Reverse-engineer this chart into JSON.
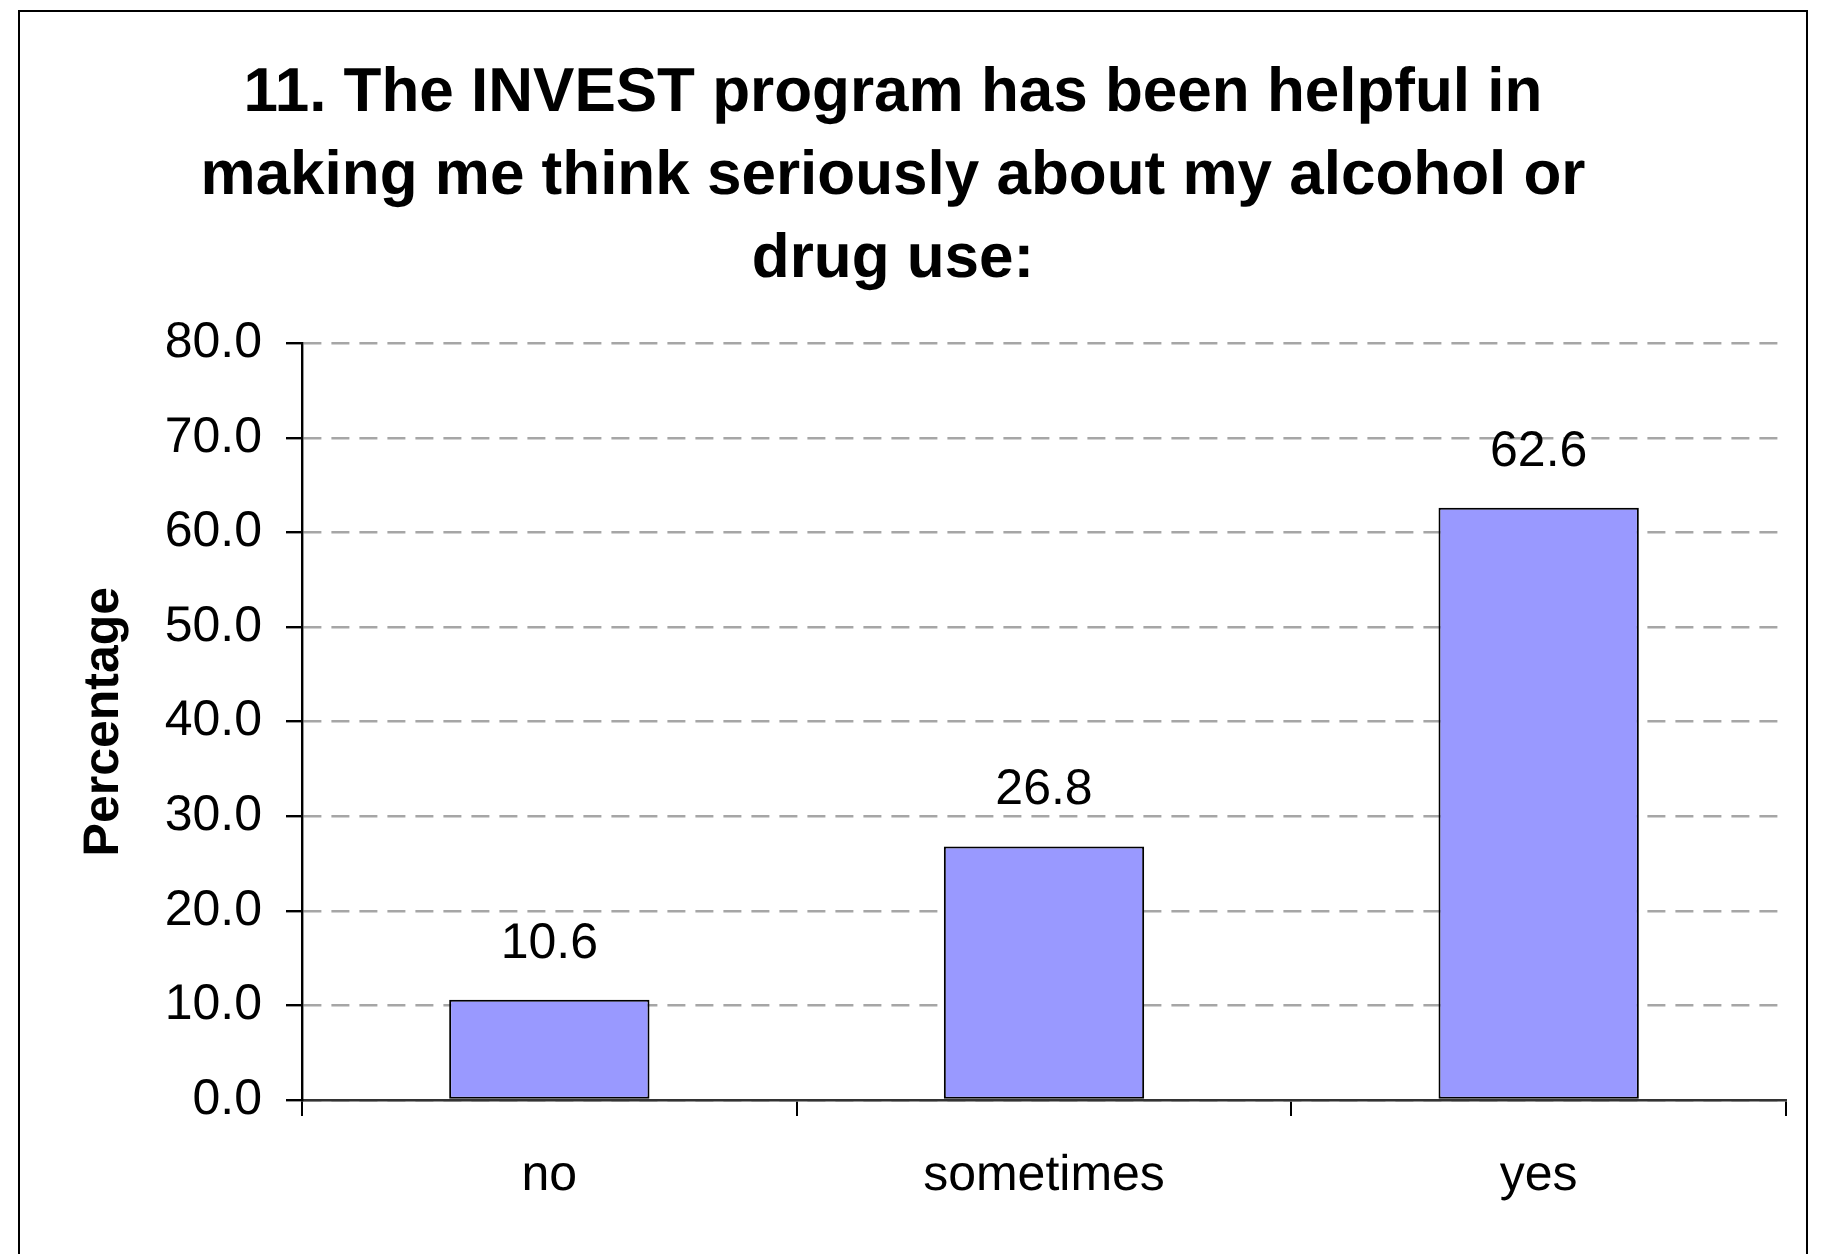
{
  "chart_data": {
    "type": "bar",
    "title": "11. The INVEST program has been helpful in making me think seriously about my alcohol or drug use:",
    "ylabel": "Percentage",
    "categories": [
      "no",
      "sometimes",
      "yes"
    ],
    "values": [
      10.6,
      26.8,
      62.6
    ],
    "color": "#9999ff",
    "ylim": [
      0,
      80
    ],
    "yticks": [
      {
        "value": 0,
        "label": "0.0"
      },
      {
        "value": 10,
        "label": "10.0"
      },
      {
        "value": 20,
        "label": "20.0"
      },
      {
        "value": 30,
        "label": "30.0"
      },
      {
        "value": 40,
        "label": "40.0"
      },
      {
        "value": 50,
        "label": "50.0"
      },
      {
        "value": 60,
        "label": "60.0"
      },
      {
        "value": 70,
        "label": "70.0"
      },
      {
        "value": 80,
        "label": "80.0"
      }
    ],
    "grid": "y",
    "data_labels": true
  }
}
